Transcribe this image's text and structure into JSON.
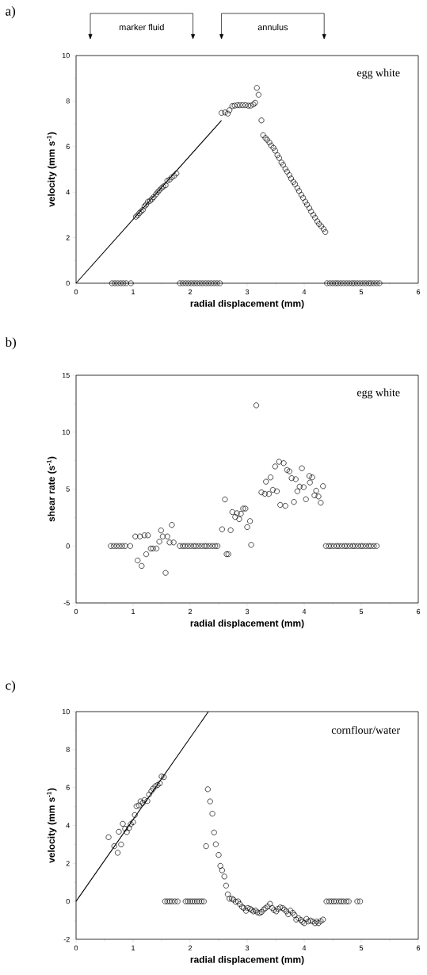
{
  "chart_data": [
    {
      "type": "scatter",
      "title": "a)",
      "xlabel": "radial displacement (mm)",
      "ylabel": "velocity (mm s$^{-1}$)",
      "xlim": [
        0,
        6
      ],
      "xticks": [
        0,
        1,
        2,
        3,
        4,
        5,
        6
      ],
      "ylim": [
        0,
        10
      ],
      "yticks": [
        0,
        2,
        4,
        6,
        8,
        10
      ],
      "grid": false,
      "annotations": [
        "marker fluid",
        "annulus",
        "egg white"
      ],
      "series": [
        {
          "marker": "circle",
          "color": "#000000",
          "x": [
            0.63,
            0.68,
            0.73,
            0.78,
            0.83,
            0.88,
            0.96,
            1.05,
            1.08,
            1.11,
            1.14,
            1.17,
            1.2,
            1.23,
            1.26,
            1.3,
            1.33,
            1.36,
            1.4,
            1.43,
            1.46,
            1.5,
            1.53,
            1.57,
            1.6,
            1.64,
            1.68,
            1.72,
            1.76,
            1.82,
            1.87,
            1.92,
            1.97,
            2.02,
            2.07,
            2.12,
            2.17,
            2.22,
            2.27,
            2.32,
            2.37,
            2.42,
            2.47,
            2.52,
            2.55,
            2.61,
            2.66,
            2.69,
            2.74,
            2.78,
            2.83,
            2.87,
            2.92,
            2.97,
            3.02,
            3.06,
            3.11,
            3.14,
            3.17,
            3.2,
            3.25,
            3.28,
            3.32,
            3.35,
            3.39,
            3.42,
            3.46,
            3.49,
            3.53,
            3.56,
            3.6,
            3.63,
            3.67,
            3.7,
            3.74,
            3.77,
            3.81,
            3.84,
            3.88,
            3.91,
            3.95,
            3.98,
            4.02,
            4.05,
            4.09,
            4.12,
            4.16,
            4.19,
            4.23,
            4.26,
            4.3,
            4.34,
            4.37,
            4.4,
            4.45,
            4.5,
            4.55,
            4.59,
            4.64,
            4.69,
            4.74,
            4.79,
            4.84,
            4.88,
            4.93,
            4.98,
            5.03,
            5.08,
            5.13,
            5.17,
            5.22,
            5.27,
            5.32
          ],
          "values": [
            0,
            0,
            0,
            0,
            0,
            0,
            0,
            2.92,
            2.98,
            3.08,
            3.15,
            3.22,
            3.38,
            3.45,
            3.58,
            3.62,
            3.7,
            3.78,
            3.9,
            4.0,
            4.08,
            4.18,
            4.25,
            4.3,
            4.5,
            4.55,
            4.65,
            4.72,
            4.82,
            0,
            0,
            0,
            0,
            0,
            0,
            0,
            0,
            0,
            0,
            0,
            0,
            0,
            0,
            0,
            7.48,
            7.5,
            7.45,
            7.6,
            7.78,
            7.8,
            7.82,
            7.82,
            7.82,
            7.82,
            7.8,
            7.8,
            7.85,
            7.93,
            8.58,
            8.28,
            7.15,
            6.5,
            6.38,
            6.3,
            6.18,
            6.05,
            5.95,
            5.82,
            5.62,
            5.5,
            5.3,
            5.2,
            5.02,
            4.9,
            4.75,
            4.6,
            4.45,
            4.35,
            4.18,
            4.05,
            3.88,
            3.75,
            3.58,
            3.45,
            3.3,
            3.15,
            3.0,
            2.88,
            2.72,
            2.6,
            2.5,
            2.38,
            2.25,
            0,
            0,
            0,
            0,
            0,
            0,
            0,
            0,
            0,
            0,
            0,
            0,
            0,
            0,
            0,
            0,
            0,
            0,
            0,
            0
          ]
        },
        {
          "type": "line",
          "color": "#000000",
          "x": [
            0,
            2.55
          ],
          "values": [
            0,
            7.15
          ]
        }
      ]
    },
    {
      "type": "scatter",
      "title": "b)",
      "xlabel": "radial displacement (mm)",
      "ylabel": "shear rate (s$^{-1}$)",
      "xlim": [
        0,
        6
      ],
      "xticks": [
        0,
        1,
        2,
        3,
        4,
        5,
        6
      ],
      "ylim": [
        -5,
        15
      ],
      "yticks": [
        -5,
        0,
        5,
        10,
        15
      ],
      "grid": false,
      "annotations": [
        "egg white"
      ],
      "series": [
        {
          "marker": "circle",
          "color": "#000000",
          "x": [
            0.61,
            0.66,
            0.71,
            0.76,
            0.81,
            0.86,
            0.95,
            1.04,
            1.12,
            1.2,
            1.26,
            1.08,
            1.15,
            1.23,
            1.31,
            1.35,
            1.41,
            1.46,
            1.49,
            1.52,
            1.6,
            1.57,
            1.64,
            1.68,
            1.71,
            1.82,
            1.87,
            1.91,
            1.96,
            2.01,
            2.06,
            2.1,
            2.15,
            2.2,
            2.25,
            2.29,
            2.34,
            2.39,
            2.44,
            2.48,
            2.56,
            2.61,
            2.64,
            2.67,
            2.71,
            2.74,
            2.79,
            2.82,
            2.86,
            2.89,
            2.93,
            2.97,
            3.0,
            3.05,
            3.07,
            3.16,
            3.25,
            3.31,
            3.33,
            3.38,
            3.41,
            3.45,
            3.49,
            3.52,
            3.56,
            3.58,
            3.64,
            3.67,
            3.7,
            3.74,
            3.78,
            3.82,
            3.85,
            3.88,
            3.92,
            3.96,
            3.99,
            4.03,
            4.09,
            4.1,
            4.14,
            4.18,
            4.21,
            4.25,
            4.29,
            4.33,
            4.38,
            4.43,
            4.47,
            4.52,
            4.57,
            4.61,
            4.66,
            4.71,
            4.75,
            4.8,
            4.85,
            4.89,
            4.94,
            4.99,
            5.03,
            5.08,
            5.13,
            5.17,
            5.22,
            5.27
          ],
          "values": [
            0,
            0,
            0,
            0,
            0,
            0,
            0,
            0.84,
            0.84,
            0.94,
            0.94,
            -1.27,
            -1.75,
            -0.72,
            -0.22,
            -0.22,
            -0.22,
            0.38,
            1.37,
            0.84,
            0.84,
            -2.36,
            0.31,
            1.85,
            0.31,
            0,
            0,
            0,
            0,
            0,
            0,
            0,
            0,
            0,
            0,
            0,
            0,
            0,
            0,
            0,
            1.47,
            4.09,
            -0.72,
            -0.72,
            1.39,
            2.98,
            2.55,
            2.88,
            2.36,
            2.84,
            3.29,
            3.29,
            1.66,
            2.19,
            0.1,
            12.36,
            4.71,
            4.59,
            5.65,
            4.57,
            6.03,
            4.93,
            6.99,
            4.81,
            7.4,
            3.61,
            7.28,
            3.53,
            6.68,
            6.56,
            5.96,
            3.87,
            5.87,
            4.81,
            5.22,
            6.83,
            5.17,
            4.11,
            6.15,
            5.58,
            6.03,
            4.45,
            4.86,
            4.35,
            3.8,
            5.26,
            0,
            0,
            0,
            0,
            0,
            0,
            0,
            0,
            0,
            0,
            0,
            0,
            0,
            0,
            0,
            0,
            0,
            0,
            0,
            0
          ]
        }
      ]
    },
    {
      "type": "scatter",
      "title": "c)",
      "xlabel": "radial displacement (mm)",
      "ylabel": "velocity (mm s$^{-1}$)",
      "xlim": [
        0,
        6
      ],
      "xticks": [
        0,
        1,
        2,
        3,
        4,
        5,
        6
      ],
      "ylim": [
        -2,
        10
      ],
      "yticks": [
        -2,
        0,
        2,
        4,
        6,
        8,
        10
      ],
      "grid": false,
      "annotations": [
        "cornflour/water"
      ],
      "series": [
        {
          "marker": "circle",
          "color": "#000000",
          "x": [
            0.57,
            0.67,
            0.73,
            0.75,
            0.79,
            0.82,
            0.86,
            0.89,
            0.93,
            0.96,
            1.0,
            1.03,
            1.06,
            1.1,
            1.13,
            1.17,
            1.2,
            1.25,
            1.28,
            1.32,
            1.35,
            1.39,
            1.43,
            1.47,
            1.5,
            1.54,
            1.56,
            1.6,
            1.64,
            1.68,
            1.73,
            1.78,
            1.92,
            1.96,
            2.0,
            2.04,
            2.08,
            2.12,
            2.16,
            2.2,
            2.24,
            2.28,
            2.31,
            2.35,
            2.39,
            2.42,
            2.45,
            2.5,
            2.53,
            2.56,
            2.6,
            2.63,
            2.66,
            2.69,
            2.73,
            2.76,
            2.8,
            2.84,
            2.87,
            2.91,
            2.94,
            2.98,
            3.01,
            3.05,
            3.08,
            3.11,
            3.15,
            3.18,
            3.22,
            3.25,
            3.29,
            3.32,
            3.36,
            3.4,
            3.44,
            3.47,
            3.51,
            3.54,
            3.58,
            3.62,
            3.65,
            3.69,
            3.72,
            3.76,
            3.8,
            3.83,
            3.86,
            3.9,
            3.94,
            3.97,
            4.0,
            4.04,
            4.07,
            4.11,
            4.15,
            4.19,
            4.22,
            4.25,
            4.29,
            4.33,
            4.39,
            4.44,
            4.48,
            4.52,
            4.56,
            4.61,
            4.65,
            4.69,
            4.74,
            4.78,
            4.93,
            4.98
          ],
          "values": [
            3.38,
            2.91,
            2.56,
            3.67,
            3.0,
            4.09,
            3.83,
            3.65,
            3.87,
            4.07,
            4.17,
            4.55,
            5.01,
            5.06,
            5.27,
            5.18,
            5.34,
            5.29,
            5.63,
            5.81,
            5.94,
            6.07,
            6.13,
            6.22,
            6.58,
            6.55,
            0,
            0,
            0,
            0,
            0,
            0,
            0,
            0,
            0,
            0,
            0,
            0,
            0,
            0,
            0,
            2.91,
            5.91,
            5.27,
            4.62,
            3.63,
            3.01,
            2.45,
            1.87,
            1.64,
            1.31,
            0.83,
            0.37,
            0.14,
            0.14,
            0.09,
            -0.03,
            0,
            -0.14,
            -0.29,
            -0.35,
            -0.5,
            -0.35,
            -0.39,
            -0.46,
            -0.53,
            -0.49,
            -0.58,
            -0.62,
            -0.56,
            -0.43,
            -0.36,
            -0.27,
            -0.13,
            -0.35,
            -0.46,
            -0.53,
            -0.39,
            -0.32,
            -0.35,
            -0.43,
            -0.53,
            -0.68,
            -0.49,
            -0.6,
            -0.72,
            -0.96,
            -0.89,
            -0.98,
            -1.08,
            -1.15,
            -0.92,
            -1.06,
            -1.01,
            -1.06,
            -1.15,
            -1.06,
            -1.15,
            -1.04,
            -0.96,
            0,
            0,
            0,
            0,
            0,
            0,
            0,
            0,
            0,
            0,
            0,
            0
          ]
        },
        {
          "type": "line",
          "color": "#000000",
          "x": [
            0,
            2.32
          ],
          "values": [
            0,
            10
          ]
        }
      ]
    }
  ]
}
